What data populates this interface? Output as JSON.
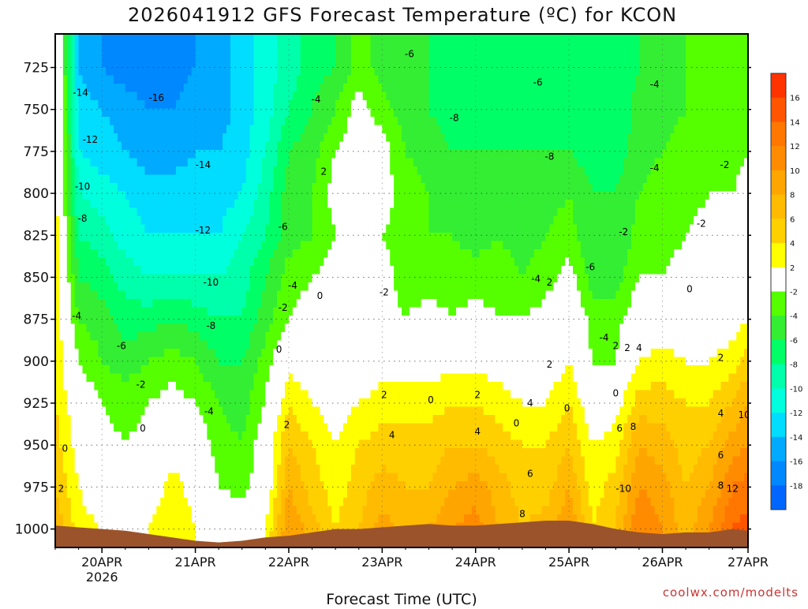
{
  "chart_data": {
    "type": "heatmap",
    "title": "2026041912 GFS Forecast Temperature (ºC) for KCON",
    "xlabel": "Forecast Time (UTC)",
    "ylabel": "",
    "credit": "coolwx.com/modelts",
    "x_range_hours": [
      0,
      178
    ],
    "y_range_hpa": [
      1011,
      705
    ],
    "x_ticks": [
      {
        "label": "20APR",
        "sublabel": "2026",
        "hour": 12
      },
      {
        "label": "21APR",
        "hour": 36
      },
      {
        "label": "22APR",
        "hour": 60
      },
      {
        "label": "23APR",
        "hour": 84
      },
      {
        "label": "24APR",
        "hour": 108
      },
      {
        "label": "25APR",
        "hour": 132
      },
      {
        "label": "26APR",
        "hour": 156
      },
      {
        "label": "27APR",
        "hour": 180
      }
    ],
    "y_ticks": [
      {
        "label": "725",
        "value": 725
      },
      {
        "label": "750",
        "value": 750
      },
      {
        "label": "775",
        "value": 775
      },
      {
        "label": "800",
        "value": 800
      },
      {
        "label": "825",
        "value": 825
      },
      {
        "label": "850",
        "value": 850
      },
      {
        "label": "875",
        "value": 875
      },
      {
        "label": "900",
        "value": 900
      },
      {
        "label": "925",
        "value": 925
      },
      {
        "label": "950",
        "value": 950
      },
      {
        "label": "975",
        "value": 975
      },
      {
        "label": "1000",
        "value": 1000
      }
    ],
    "colorbar": {
      "labels": [
        "16",
        "14",
        "12",
        "10",
        "8",
        "6",
        "4",
        "2",
        "-2",
        "-4",
        "-6",
        "-8",
        "-10",
        "-12",
        "-14",
        "-16",
        "-18"
      ],
      "bins": [
        {
          "min": 16,
          "max": 18,
          "color": "#ff3300"
        },
        {
          "min": 14,
          "max": 16,
          "color": "#ff5500"
        },
        {
          "min": 12,
          "max": 14,
          "color": "#ff7700"
        },
        {
          "min": 10,
          "max": 12,
          "color": "#ff8c00"
        },
        {
          "min": 8,
          "max": 10,
          "color": "#ffa500"
        },
        {
          "min": 6,
          "max": 8,
          "color": "#ffbb00"
        },
        {
          "min": 4,
          "max": 6,
          "color": "#ffd000"
        },
        {
          "min": 2,
          "max": 4,
          "color": "#ffff00"
        },
        {
          "min": -2,
          "max": 2,
          "color": "#ffffff"
        },
        {
          "min": -4,
          "max": -2,
          "color": "#55ff00"
        },
        {
          "min": -6,
          "max": -4,
          "color": "#33ee33"
        },
        {
          "min": -8,
          "max": -6,
          "color": "#00ff66"
        },
        {
          "min": -10,
          "max": -8,
          "color": "#00ffaa"
        },
        {
          "min": -12,
          "max": -10,
          "color": "#00ffdd"
        },
        {
          "min": -14,
          "max": -12,
          "color": "#00ddff"
        },
        {
          "min": -16,
          "max": -14,
          "color": "#00aaff"
        },
        {
          "min": -18,
          "max": -16,
          "color": "#0088ff"
        },
        {
          "min": -20,
          "max": -18,
          "color": "#0066ff"
        }
      ]
    },
    "colors": {
      "zero_contour": "#b0186a",
      "terrain": "#9b532b",
      "frame": "#000000"
    },
    "temperature_samples": {
      "hours": [
        0,
        6,
        12,
        18,
        24,
        30,
        36,
        42,
        48,
        54,
        60,
        66,
        72,
        78,
        84,
        90,
        96,
        102,
        108,
        114,
        120,
        126,
        132,
        138,
        144,
        150,
        156,
        162,
        168,
        174,
        178
      ],
      "pressure_levels": [
        1000,
        975,
        950,
        925,
        900,
        875,
        850,
        825,
        800,
        775,
        750,
        725,
        710
      ],
      "rows": [
        [
          8,
          3,
          2,
          1,
          2,
          4,
          2,
          0,
          1,
          2,
          10,
          7,
          4,
          6,
          9,
          7,
          8,
          10,
          11,
          8,
          6,
          7,
          10,
          4,
          6,
          12,
          10,
          7,
          10,
          14,
          15
        ],
        [
          6,
          2,
          0,
          -1,
          0,
          3,
          1,
          -2,
          -3,
          0,
          8,
          5,
          3,
          5,
          7,
          6,
          6,
          8,
          9,
          7,
          5,
          5,
          8,
          3,
          5,
          10,
          9,
          6,
          8,
          12,
          13
        ],
        [
          5,
          1,
          -1,
          -2,
          -1,
          1,
          0,
          -3,
          -4,
          0,
          6,
          4,
          2,
          4,
          5,
          5,
          5,
          6,
          6,
          5,
          4,
          4,
          6,
          2,
          3,
          8,
          7,
          5,
          6,
          9,
          10
        ],
        [
          4,
          0,
          -2,
          -3,
          -2,
          -1,
          -2,
          -4,
          -5,
          -2,
          4,
          2,
          1,
          2,
          3,
          3,
          3,
          4,
          4,
          3,
          2,
          2,
          4,
          0,
          1,
          5,
          5,
          4,
          4,
          6,
          8
        ],
        [
          4,
          -2,
          -4,
          -5,
          -4,
          -3,
          -4,
          -6,
          -6,
          -3,
          1,
          0,
          0,
          0,
          1,
          1,
          1,
          1,
          1,
          1,
          0,
          0,
          2,
          -2,
          -2,
          2,
          3,
          2,
          2,
          3,
          5
        ],
        [
          3,
          -4,
          -5,
          -7,
          -7,
          -6,
          -7,
          -8,
          -8,
          -5,
          -2,
          -1,
          0,
          -2,
          -1,
          -2,
          -1,
          -2,
          -1,
          -2,
          -2,
          -1,
          1,
          -3,
          -3,
          0,
          0,
          0,
          0,
          1,
          2
        ],
        [
          3,
          -6,
          -7,
          -9,
          -10,
          -10,
          -10,
          -10,
          -9,
          -6,
          -3,
          -2,
          -1,
          -2,
          -1,
          -3,
          -3,
          -3,
          -3,
          -3,
          -4,
          -3,
          -1,
          -5,
          -5,
          -2,
          -2,
          -1,
          -1,
          -1,
          0
        ],
        [
          3,
          -8,
          -9,
          -11,
          -12,
          -12,
          -12,
          -12,
          -10,
          -8,
          -5,
          -4,
          -2,
          -1,
          -2,
          -3,
          -4,
          -4,
          -5,
          -4,
          -5,
          -4,
          -3,
          -6,
          -6,
          -3,
          -3,
          -2,
          -1,
          -1,
          -1
        ],
        [
          3,
          -10,
          -11,
          -12,
          -13,
          -13,
          -13,
          -13,
          -12,
          -9,
          -5,
          -4,
          -1,
          0,
          -1,
          -3,
          -4,
          -5,
          -5,
          -5,
          -5,
          -5,
          -4,
          -6,
          -6,
          -4,
          -3,
          -3,
          -2,
          -2,
          -1
        ],
        [
          3,
          -12,
          -13,
          -14,
          -15,
          -15,
          -14,
          -14,
          -13,
          -10,
          -6,
          -5,
          -2,
          0,
          -1,
          -4,
          -5,
          -6,
          -6,
          -6,
          -6,
          -6,
          -6,
          -7,
          -7,
          -5,
          -4,
          -3,
          -3,
          -3,
          -2
        ],
        [
          3,
          -13,
          -14,
          -15,
          -16,
          -16,
          -15,
          -15,
          -13,
          -11,
          -8,
          -6,
          -4,
          -1,
          -3,
          -5,
          -6,
          -7,
          -7,
          -7,
          -7,
          -7,
          -7,
          -8,
          -8,
          -5,
          -5,
          -4,
          -4,
          -4,
          -3
        ],
        [
          3,
          -14,
          -16,
          -17,
          -17,
          -17,
          -16,
          -15,
          -13,
          -11,
          -9,
          -7,
          -6,
          -3,
          -5,
          -6,
          -6,
          -7,
          -7,
          -7,
          -7,
          -7,
          -7,
          -8,
          -8,
          -6,
          -5,
          -4,
          -4,
          -4,
          -4
        ],
        [
          3,
          -14,
          -16,
          -17,
          -17,
          -17,
          -16,
          -15,
          -13,
          -11,
          -9,
          -7,
          -6,
          -3,
          -5,
          -6,
          -6,
          -7,
          -7,
          -7,
          -7,
          -7,
          -7,
          -8,
          -8,
          -6,
          -5,
          -4,
          -4,
          -4,
          -4
        ]
      ]
    },
    "surface_pressure": {
      "hours": [
        0,
        6,
        12,
        18,
        24,
        30,
        36,
        42,
        48,
        54,
        60,
        66,
        72,
        78,
        84,
        90,
        96,
        102,
        108,
        114,
        120,
        126,
        132,
        138,
        144,
        150,
        156,
        162,
        168,
        174,
        178
      ],
      "values": [
        998,
        999,
        1000,
        1001,
        1003,
        1005,
        1007,
        1008,
        1007,
        1005,
        1004,
        1002,
        1000,
        1000,
        999,
        998,
        997,
        998,
        998,
        997,
        996,
        995,
        995,
        997,
        1000,
        1002,
        1003,
        1002,
        1002,
        1000,
        1001
      ]
    },
    "contour_labels": [
      {
        "text": "-14",
        "hour": 6.5,
        "p": 740
      },
      {
        "text": "-16",
        "hour": 26,
        "p": 743
      },
      {
        "text": "-12",
        "hour": 9,
        "p": 768
      },
      {
        "text": "-10",
        "hour": 7,
        "p": 796
      },
      {
        "text": "-8",
        "hour": 7,
        "p": 815
      },
      {
        "text": "-14",
        "hour": 38,
        "p": 783
      },
      {
        "text": "-12",
        "hour": 38,
        "p": 822
      },
      {
        "text": "-10",
        "hour": 40,
        "p": 853
      },
      {
        "text": "-8",
        "hour": 40,
        "p": 879
      },
      {
        "text": "-4",
        "hour": 5.5,
        "p": 873
      },
      {
        "text": "-6",
        "hour": 17,
        "p": 891
      },
      {
        "text": "-2",
        "hour": 22,
        "p": 914
      },
      {
        "text": "0",
        "hour": 22.5,
        "p": 940
      },
      {
        "text": "0",
        "hour": 2.5,
        "p": 952
      },
      {
        "text": "2",
        "hour": 1.5,
        "p": 976
      },
      {
        "text": "-4",
        "hour": 39.5,
        "p": 930
      },
      {
        "text": "-6",
        "hour": 58.5,
        "p": 820
      },
      {
        "text": "-4",
        "hour": 61,
        "p": 855
      },
      {
        "text": "-2",
        "hour": 58.5,
        "p": 868
      },
      {
        "text": "0",
        "hour": 57.5,
        "p": 893
      },
      {
        "text": "2",
        "hour": 59.5,
        "p": 938
      },
      {
        "text": "-4",
        "hour": 67,
        "p": 744
      },
      {
        "text": "2",
        "hour": 69,
        "p": 787
      },
      {
        "text": "0",
        "hour": 68,
        "p": 861
      },
      {
        "text": "-2",
        "hour": 84.5,
        "p": 859
      },
      {
        "text": "-6",
        "hour": 91,
        "p": 717
      },
      {
        "text": "-8",
        "hour": 102.5,
        "p": 755
      },
      {
        "text": "2",
        "hour": 84.5,
        "p": 920
      },
      {
        "text": "4",
        "hour": 86.5,
        "p": 944
      },
      {
        "text": "0",
        "hour": 96.5,
        "p": 923
      },
      {
        "text": "2",
        "hour": 108.5,
        "p": 920
      },
      {
        "text": "4",
        "hour": 108.5,
        "p": 942
      },
      {
        "text": "0",
        "hour": 118.5,
        "p": 937
      },
      {
        "text": "4",
        "hour": 122,
        "p": 925
      },
      {
        "text": "6",
        "hour": 122,
        "p": 967
      },
      {
        "text": "8",
        "hour": 120,
        "p": 991
      },
      {
        "text": "-6",
        "hour": 124,
        "p": 734
      },
      {
        "text": "-8",
        "hour": 127,
        "p": 778
      },
      {
        "text": "-4",
        "hour": 123.5,
        "p": 851
      },
      {
        "text": "2",
        "hour": 127,
        "p": 853
      },
      {
        "text": "2",
        "hour": 127,
        "p": 902
      },
      {
        "text": "0",
        "hour": 131.5,
        "p": 928
      },
      {
        "text": "-6",
        "hour": 137.5,
        "p": 844
      },
      {
        "text": "-4",
        "hour": 141,
        "p": 886
      },
      {
        "text": "-2",
        "hour": 146,
        "p": 823
      },
      {
        "text": "2",
        "hour": 144,
        "p": 891
      },
      {
        "text": "2",
        "hour": 147,
        "p": 892
      },
      {
        "text": "4",
        "hour": 150,
        "p": 892
      },
      {
        "text": "0",
        "hour": 144,
        "p": 919
      },
      {
        "text": "6",
        "hour": 145,
        "p": 940
      },
      {
        "text": "8",
        "hour": 148.5,
        "p": 939
      },
      {
        "text": "-10",
        "hour": 146,
        "p": 976
      },
      {
        "text": "-4",
        "hour": 154,
        "p": 735
      },
      {
        "text": "-4",
        "hour": 154,
        "p": 785
      },
      {
        "text": "-2",
        "hour": 172,
        "p": 783
      },
      {
        "text": "-2",
        "hour": 166,
        "p": 818
      },
      {
        "text": "0",
        "hour": 163,
        "p": 857
      },
      {
        "text": "2",
        "hour": 171,
        "p": 898
      },
      {
        "text": "4",
        "hour": 171,
        "p": 931
      },
      {
        "text": "10",
        "hour": 177,
        "p": 932
      },
      {
        "text": "6",
        "hour": 171,
        "p": 956
      },
      {
        "text": "8",
        "hour": 171,
        "p": 974
      },
      {
        "text": "12",
        "hour": 174,
        "p": 976
      }
    ]
  }
}
